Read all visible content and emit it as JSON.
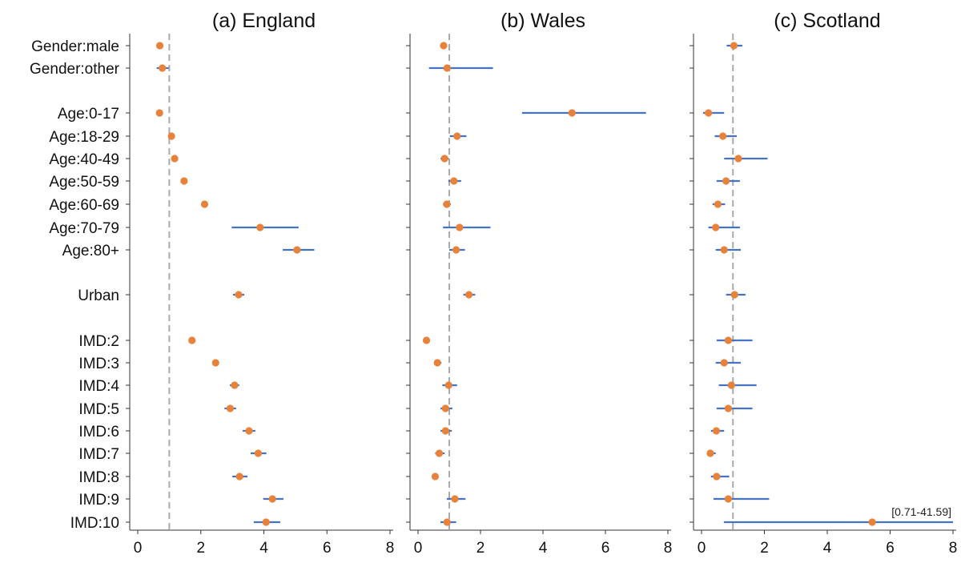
{
  "chart_data": {
    "type": "scatter",
    "rows": [
      "Gender:male",
      "Gender:other",
      "Age:0-17",
      "Age:18-29",
      "Age:40-49",
      "Age:50-59",
      "Age:60-69",
      "Age:70-79",
      "Age:80+",
      "Urban",
      "IMD:2",
      "IMD:3",
      "IMD:4",
      "IMD:5",
      "IMD:6",
      "IMD:7",
      "IMD:8",
      "IMD:9",
      "IMD:10"
    ],
    "xlim": [
      0,
      8
    ],
    "xticks": [
      0,
      2,
      4,
      6,
      8
    ],
    "reference_line": 1,
    "grid": false,
    "colors": {
      "point": "#E8823A",
      "interval": "#4472C4",
      "reference_line": "#AAAAAA",
      "axis": "#333333"
    },
    "panels": [
      {
        "title": "(a) England",
        "estimates": [
          0.7,
          0.78,
          0.69,
          1.07,
          1.17,
          1.47,
          2.12,
          3.88,
          5.05,
          3.2,
          1.72,
          2.47,
          3.07,
          2.93,
          3.53,
          3.82,
          3.23,
          4.27,
          4.07
        ],
        "lower": [
          0.67,
          0.6,
          0.66,
          1.02,
          1.12,
          1.42,
          2.05,
          2.98,
          4.6,
          3.02,
          1.66,
          2.38,
          2.92,
          2.75,
          3.33,
          3.58,
          3.0,
          3.98,
          3.68
        ],
        "upper": [
          0.73,
          0.98,
          0.72,
          1.12,
          1.22,
          1.52,
          2.2,
          5.1,
          5.6,
          3.38,
          1.78,
          2.56,
          3.22,
          3.12,
          3.73,
          4.08,
          3.48,
          4.62,
          4.52
        ]
      },
      {
        "title": "(b) Wales",
        "estimates": [
          0.82,
          0.93,
          4.93,
          1.25,
          0.85,
          1.15,
          0.92,
          1.33,
          1.22,
          1.63,
          0.27,
          0.62,
          0.98,
          0.88,
          0.88,
          0.68,
          0.55,
          1.18,
          0.93
        ],
        "lower": [
          0.75,
          0.35,
          3.33,
          1.02,
          0.72,
          0.97,
          0.8,
          0.8,
          1.0,
          1.45,
          0.23,
          0.52,
          0.78,
          0.72,
          0.72,
          0.55,
          0.48,
          0.92,
          0.72
        ],
        "upper": [
          0.9,
          2.4,
          7.3,
          1.55,
          0.98,
          1.38,
          1.05,
          2.32,
          1.5,
          1.83,
          0.31,
          0.75,
          1.25,
          1.1,
          1.08,
          0.85,
          0.63,
          1.52,
          1.22
        ]
      },
      {
        "title": "(c) Scotland",
        "estimates": [
          1.03,
          null,
          0.22,
          0.68,
          1.17,
          0.78,
          0.52,
          0.45,
          0.72,
          1.05,
          0.85,
          0.72,
          0.95,
          0.85,
          0.47,
          0.28,
          0.48,
          0.85,
          5.43
        ],
        "lower": [
          0.8,
          null,
          0.05,
          0.42,
          0.72,
          0.48,
          0.35,
          0.22,
          0.45,
          0.78,
          0.48,
          0.45,
          0.55,
          0.48,
          0.3,
          0.2,
          0.3,
          0.38,
          0.71
        ],
        "upper": [
          1.3,
          null,
          0.72,
          1.12,
          2.1,
          1.22,
          0.75,
          1.22,
          1.25,
          1.4,
          1.62,
          1.25,
          1.75,
          1.62,
          0.72,
          0.45,
          0.88,
          2.15,
          8.0
        ],
        "annotations": [
          {
            "row": "IMD:10",
            "text": "[0.71-41.59]"
          }
        ]
      }
    ]
  }
}
